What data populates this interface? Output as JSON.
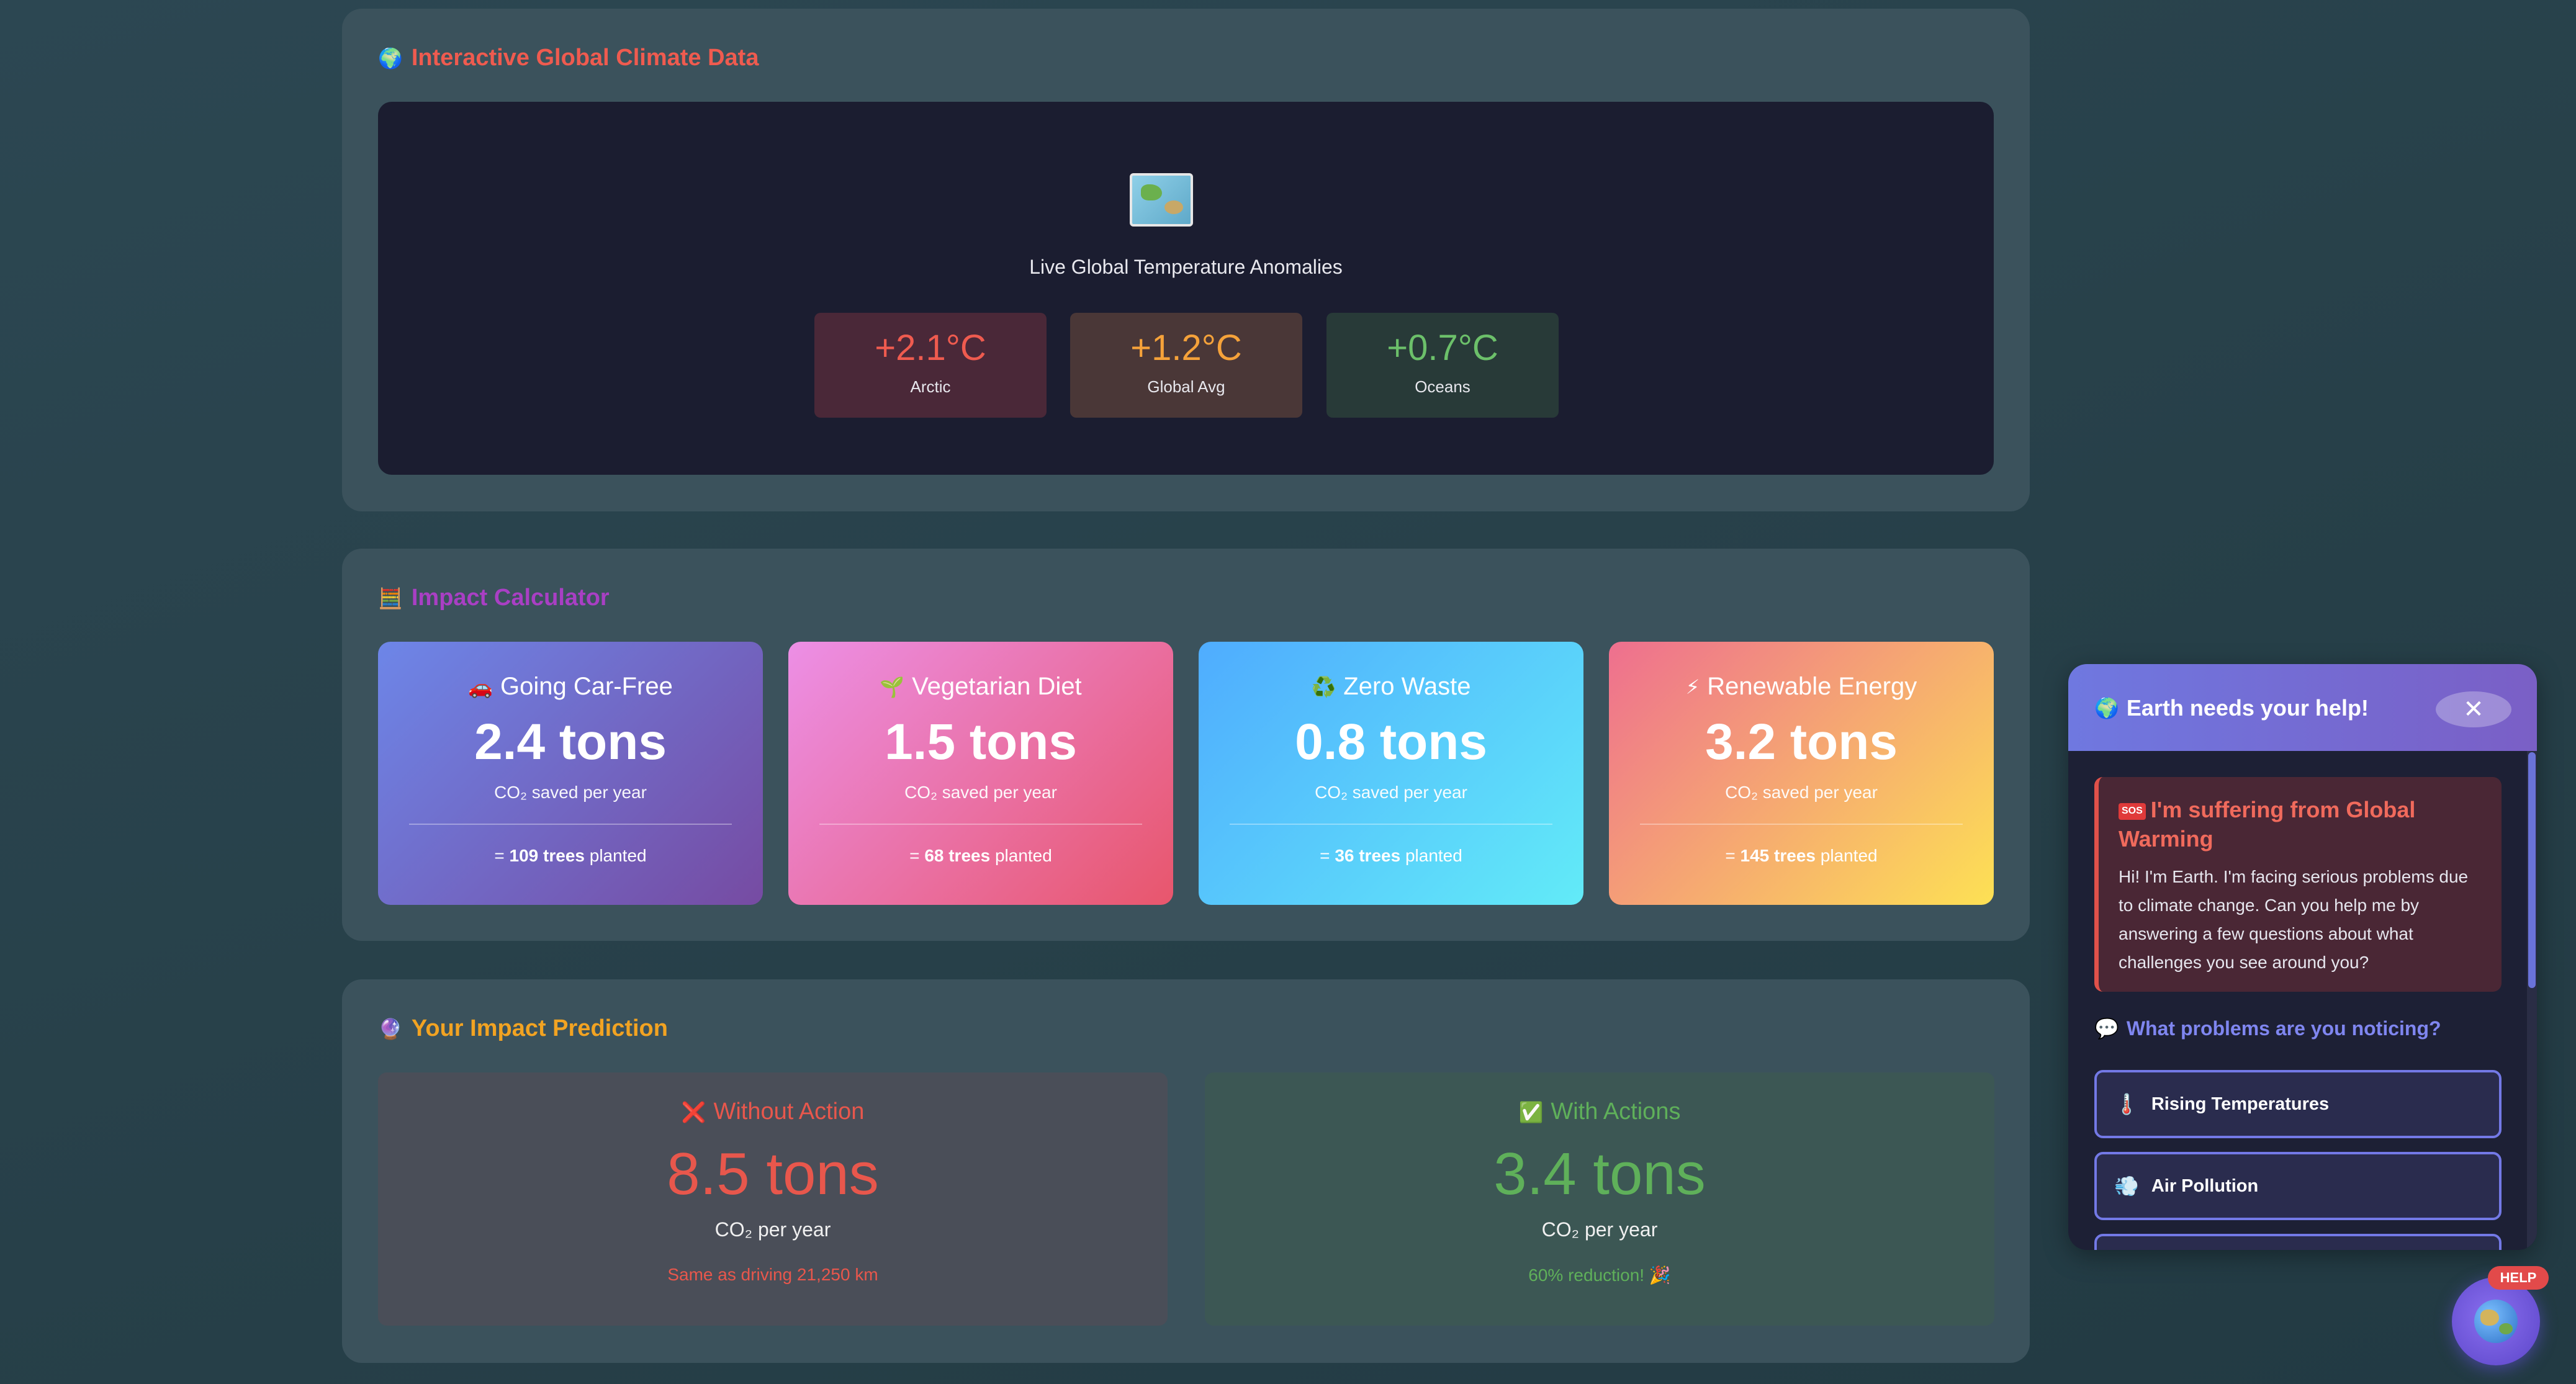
{
  "climate": {
    "title": "Interactive Global Climate Data",
    "title_icon": "🌍",
    "map_icon": "world-map-icon",
    "caption": "Live Global Temperature Anomalies",
    "temps": [
      {
        "value": "+2.1°C",
        "label": "Arctic",
        "color": "#ef5b4f",
        "bg": "#4a2838"
      },
      {
        "value": "+1.2°C",
        "label": "Global Avg",
        "color": "#f5a23a",
        "bg": "#4a3737"
      },
      {
        "value": "+0.7°C",
        "label": "Oceans",
        "color": "#6cc06a",
        "bg": "#283a38"
      }
    ]
  },
  "calculator": {
    "title": "Impact Calculator",
    "title_icon": "🧮",
    "cards": [
      {
        "icon": "🚗",
        "title": "Going Car-Free",
        "value": "2.4 tons",
        "sub": "CO₂ saved per year",
        "trees_prefix": "= ",
        "trees_bold": "109 trees",
        "trees_suffix": " planted"
      },
      {
        "icon": "🌱",
        "title": "Vegetarian Diet",
        "value": "1.5 tons",
        "sub": "CO₂ saved per year",
        "trees_prefix": "= ",
        "trees_bold": "68 trees",
        "trees_suffix": " planted"
      },
      {
        "icon": "♻️",
        "title": "Zero Waste",
        "value": "0.8 tons",
        "sub": "CO₂ saved per year",
        "trees_prefix": "= ",
        "trees_bold": "36 trees",
        "trees_suffix": " planted"
      },
      {
        "icon": "⚡",
        "title": "Renewable Energy",
        "value": "3.2 tons",
        "sub": "CO₂ saved per year",
        "trees_prefix": "= ",
        "trees_bold": "145 trees",
        "trees_suffix": " planted"
      }
    ]
  },
  "prediction": {
    "title": "Your Impact Prediction",
    "title_icon": "🔮",
    "without": {
      "icon": "❌",
      "title": "Without Action",
      "value": "8.5 tons",
      "sub": "CO₂ per year",
      "note": "Same as driving 21,250 km",
      "color": "#e8574c"
    },
    "with": {
      "icon": "✅",
      "title": "With Actions",
      "value": "3.4 tons",
      "sub": "CO₂ per year",
      "note": "60% reduction! 🎉",
      "color": "#5fb05a"
    }
  },
  "chat": {
    "header": "Earth needs your help!",
    "header_icon": "🌍",
    "close": "✕",
    "msg_badge": "SOS",
    "msg_title": "I'm suffering from Global Warming",
    "msg_body": "Hi! I'm Earth. I'm facing serious problems due to climate change. Can you help me by answering a few questions about what challenges you see around you?",
    "question_icon": "💬",
    "question": "What problems are you noticing?",
    "options": [
      {
        "icon": "🌡️",
        "label": "Rising Temperatures"
      },
      {
        "icon": "💨",
        "label": "Air Pollution"
      },
      {
        "icon": "",
        "label": ""
      }
    ]
  },
  "help": {
    "badge": "HELP",
    "icon": "globe-icon"
  }
}
